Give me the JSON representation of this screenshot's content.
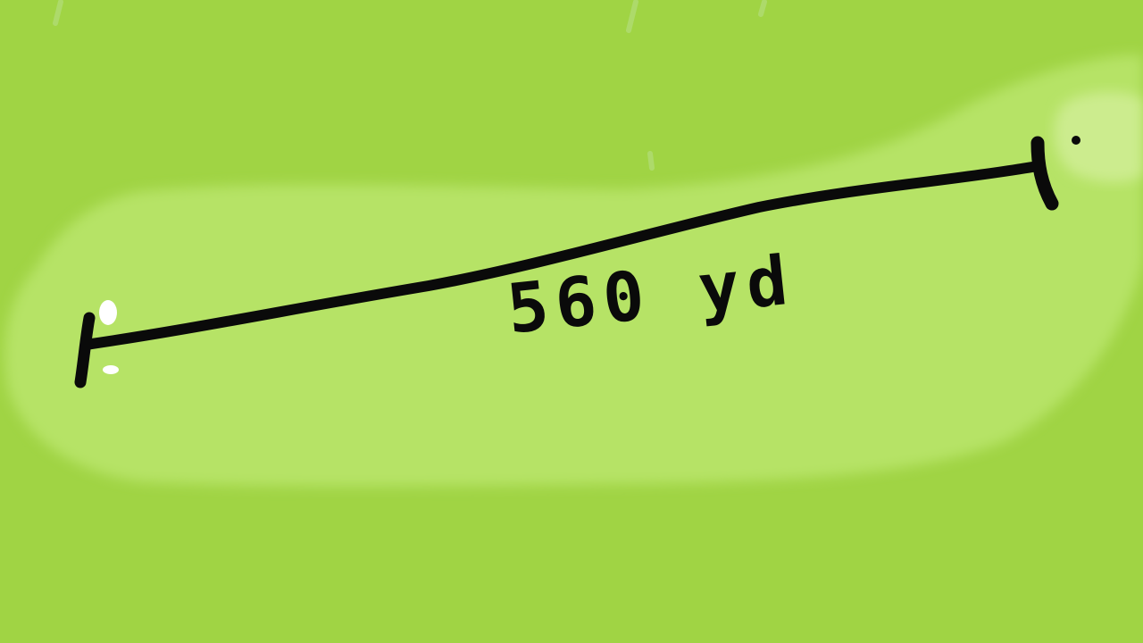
{
  "hole": {
    "distance_label": "560 yd"
  },
  "colors": {
    "rough": "#a0d444",
    "fairway": "#b6e366",
    "green": "#ccec8e",
    "line": "#0a0a0a",
    "tee_marker": "#ffffff"
  }
}
